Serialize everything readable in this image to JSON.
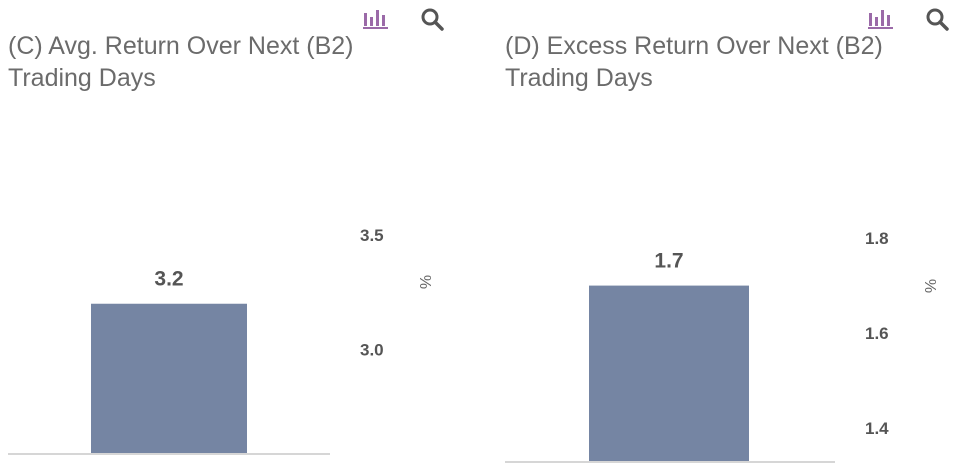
{
  "toolbar": {
    "chart_icon": "bar-chart-icon",
    "search_icon": "magnifier-icon",
    "chart_icon_color": "#9b6aa8",
    "search_icon_color": "#555555"
  },
  "chart_data": [
    {
      "type": "bar",
      "title": "(C) Avg. Return Over Next (B2) Trading Days",
      "title_lines": [
        "(C) Avg. Return Over Next (B2)",
        "Trading Days"
      ],
      "categories": [
        ""
      ],
      "values": [
        3.2
      ],
      "data_labels": [
        "3.2"
      ],
      "ylabel": "%",
      "yticks": [
        3.0,
        3.5
      ],
      "ytick_labels": [
        "3.0",
        "3.5"
      ],
      "ylim": [
        2.55,
        3.63
      ],
      "bar_color": "#7585a3",
      "grid": false,
      "y_axis_position": "right"
    },
    {
      "type": "bar",
      "title": "(D) Excess Return Over Next (B2) Trading Days",
      "title_lines": [
        "(D) Excess Return Over Next (B2)",
        "Trading Days"
      ],
      "categories": [
        ""
      ],
      "values": [
        1.7
      ],
      "data_labels": [
        "1.7"
      ],
      "ylabel": "%",
      "yticks": [
        1.4,
        1.6,
        1.8
      ],
      "ytick_labels": [
        "1.4",
        "1.6",
        "1.8"
      ],
      "ylim": [
        1.33,
        1.87
      ],
      "bar_color": "#7585a3",
      "grid": false,
      "y_axis_position": "right"
    }
  ]
}
